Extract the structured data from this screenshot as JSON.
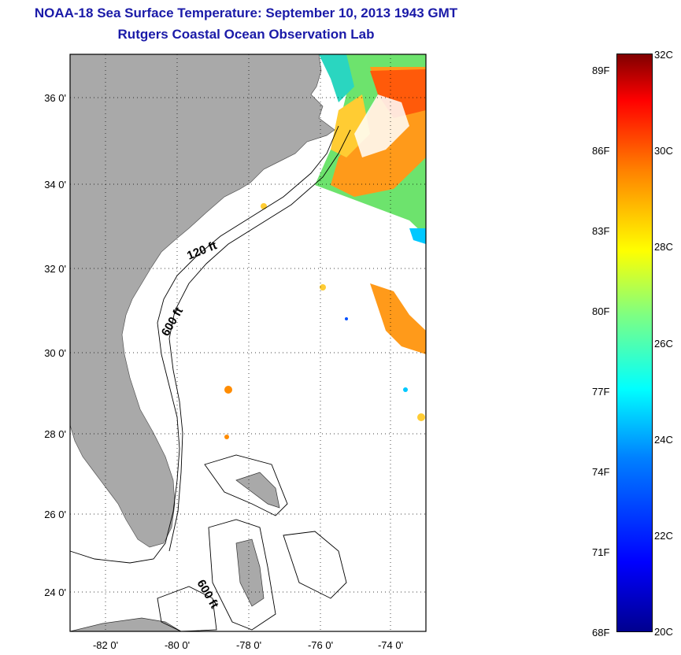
{
  "title_line1": "NOAA-18 Sea Surface Temperature:  September 10, 2013 1943 GMT",
  "title_line2": "Rutgers Coastal Ocean Observation Lab",
  "lat_ticks": [
    "36 0'",
    "34 0'",
    "32 0'",
    "30 0'",
    "28 0'",
    "26 0'",
    "24 0'"
  ],
  "lon_ticks": [
    "-82 0'",
    "-80 0'",
    "-78 0'",
    "-76 0'",
    "-74 0'"
  ],
  "contour_labels": [
    "120 ft",
    "600 ft",
    "600 ft"
  ],
  "colorbar": {
    "fahrenheit": [
      "89F",
      "86F",
      "83F",
      "80F",
      "77F",
      "74F",
      "71F",
      "68F"
    ],
    "celsius": [
      "32C",
      "30C",
      "28C",
      "26C",
      "24C",
      "22C",
      "20C"
    ]
  },
  "colors": {
    "land": "#a9a9a9",
    "title": "#1a1aa8",
    "warm": "#ff8c00",
    "cool": "#00c8ff"
  }
}
